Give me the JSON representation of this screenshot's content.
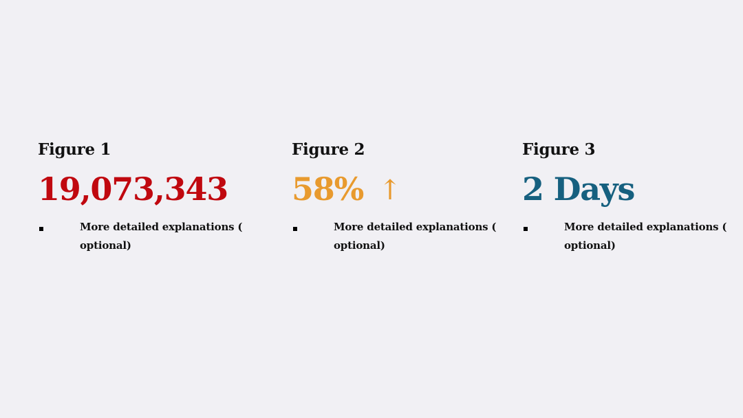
{
  "figures": [
    {
      "title": "Figure 1",
      "value": "19,073,343",
      "arrow": "",
      "color": "#c0080f",
      "bullet_text": "More detailed explanations ( optional)"
    },
    {
      "title": "Figure 2",
      "value": "58%",
      "arrow": "↑",
      "color": "#e89a2e",
      "bullet_text": "More detailed explanations ( optional)"
    },
    {
      "title": "Figure 3",
      "value": "2 Days",
      "arrow": "",
      "color": "#16607f",
      "bullet_text": "More detailed explanations ( optional)"
    }
  ]
}
